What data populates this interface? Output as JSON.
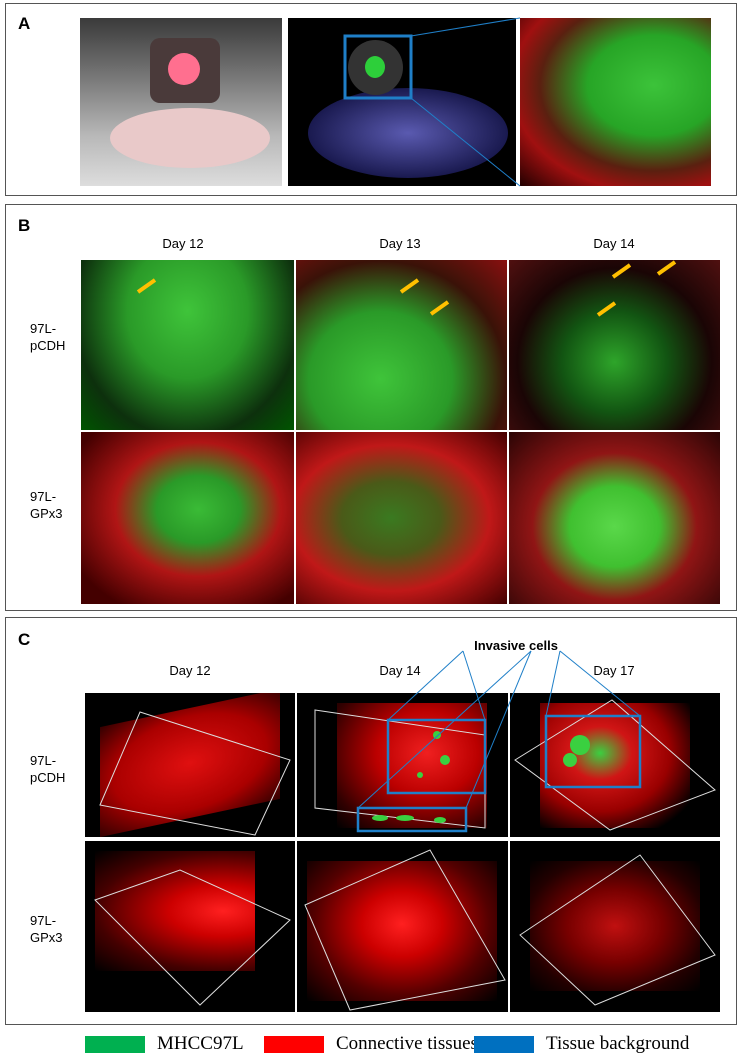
{
  "panel_a": {
    "label": "A"
  },
  "panel_b": {
    "label": "B",
    "columns": [
      "Day 12",
      "Day 13",
      "Day 14"
    ],
    "rows": [
      "97L-\npCDH",
      "97L-\nGPx3"
    ]
  },
  "panel_c": {
    "label": "C",
    "columns": [
      "Day 12",
      "Day 14",
      "Day 17"
    ],
    "rows": [
      "97L-\npCDH",
      "97L-\nGPx3"
    ],
    "annotation": "Invasive cells"
  },
  "legend": [
    {
      "label": "MHCC97L",
      "color": "#00b050"
    },
    {
      "label": "Connective tissues",
      "color": "#ff0000"
    },
    {
      "label": "Tissue background",
      "color": "#0070c0"
    }
  ],
  "colors": {
    "arrow": "#ffc000",
    "highlight_box": "#1f7fc8"
  }
}
